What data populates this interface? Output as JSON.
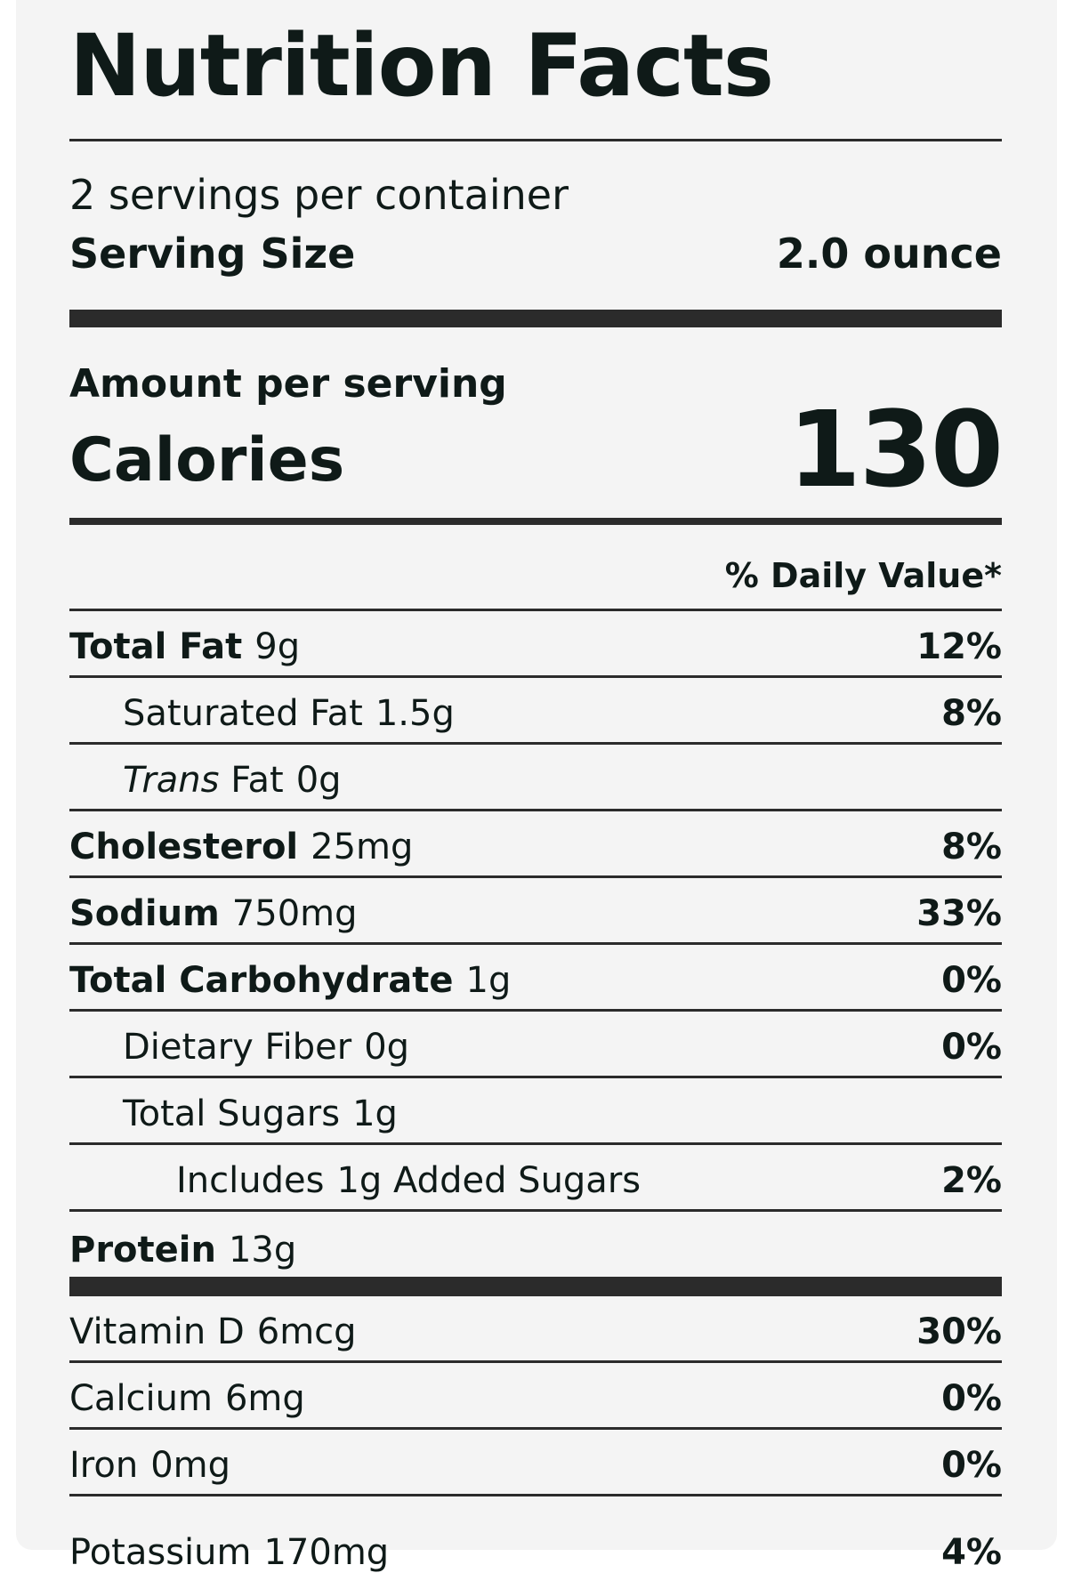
{
  "title": "Nutrition Facts",
  "servings_per_container": "2 servings per container",
  "serving_size": {
    "label": "Serving Size",
    "value": "2.0 ounce"
  },
  "amount_per_serving": "Amount per serving",
  "calories": {
    "label": "Calories",
    "value": "130"
  },
  "daily_value_header": "% Daily Value*",
  "nutrients": [
    {
      "name": "Total Fat",
      "amount": "9g",
      "dv": "12%"
    },
    {
      "name": "Saturated Fat",
      "amount": "1.5g",
      "dv": "8%"
    },
    {
      "name_italic": "Trans",
      "name": "Fat",
      "amount": "0g",
      "dv": ""
    },
    {
      "name": "Cholesterol",
      "amount": "25mg",
      "dv": "8%"
    },
    {
      "name": "Sodium",
      "amount": "750mg",
      "dv": "33%"
    },
    {
      "name": "Total Carbohydrate",
      "amount": "1g",
      "dv": "0%"
    },
    {
      "name": "Dietary Fiber",
      "amount": "0g",
      "dv": "0%"
    },
    {
      "name": "Total Sugars",
      "amount": "1g",
      "dv": ""
    },
    {
      "name_prefix": "Includes",
      "amount": "1g",
      "name": "Added Sugars",
      "dv": "2%"
    },
    {
      "name": "Protein",
      "amount": "13g",
      "dv": ""
    }
  ],
  "vitamins": [
    {
      "name": "Vitamin D",
      "amount": "6mcg",
      "dv": "30%"
    },
    {
      "name": "Calcium",
      "amount": "6mg",
      "dv": "0%"
    },
    {
      "name": "Iron",
      "amount": "0mg",
      "dv": "0%"
    },
    {
      "name": "Potassium",
      "amount": "170mg",
      "dv": "4%"
    }
  ]
}
